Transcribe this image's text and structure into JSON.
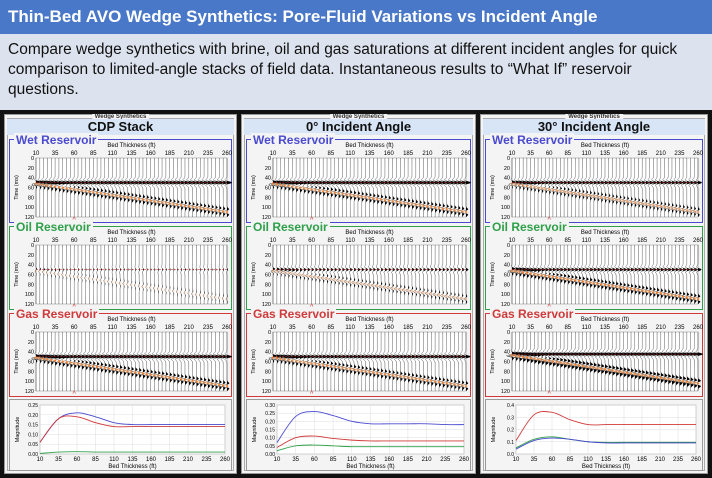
{
  "title": "Thin-Bed AVO Wedge Synthetics: Pore-Fluid Variations vs Incident Angle",
  "description": "Compare wedge synthetics with brine, oil and gas saturations at different incident angles for quick comparison to limited-angle stacks of field data. Instantaneous results to “What If” reservoir questions.",
  "group_label": "Wedge Synthetics",
  "x_axis_label": "Bed Thickness (ft)",
  "time_axis_label": "Time (ms)",
  "magnitude_axis_label": "Magnitude",
  "x_ticks": [
    "10",
    "35",
    "60",
    "85",
    "110",
    "135",
    "160",
    "185",
    "210",
    "235",
    "260"
  ],
  "time_ticks": [
    "0",
    "20",
    "40",
    "60",
    "80",
    "100",
    "120"
  ],
  "marker": "^",
  "colors": {
    "wet": "#4a4ad0",
    "oil": "#2fa04a",
    "gas": "#d03a3a",
    "title_bg": "#4a78c8",
    "horizon": "#f08030"
  },
  "columns": [
    {
      "heading": "CDP Stack",
      "reservoirs": [
        {
          "label": "Wet Reservoir",
          "key": "wet",
          "top_amp": 1.0,
          "base_amp": -0.9
        },
        {
          "label": "Oil Reservoir",
          "key": "oil",
          "top_amp": 0.15,
          "base_amp": -0.2
        },
        {
          "label": "Gas Reservoir",
          "key": "gas",
          "top_amp": 1.0,
          "base_amp": -1.0
        }
      ],
      "magnitude": {
        "yticks": [
          "0.00",
          "0.05",
          "0.10",
          "0.15",
          "0.20",
          "0.25"
        ],
        "ymax": 0.25
      }
    },
    {
      "heading": "0° Incident Angle",
      "reservoirs": [
        {
          "label": "Wet Reservoir",
          "key": "wet",
          "top_amp": 1.0,
          "base_amp": -0.9
        },
        {
          "label": "Oil Reservoir",
          "key": "oil",
          "top_amp": 0.45,
          "base_amp": -0.45
        },
        {
          "label": "Gas Reservoir",
          "key": "gas",
          "top_amp": 0.9,
          "base_amp": -0.9
        }
      ],
      "magnitude": {
        "yticks": [
          "0.00",
          "0.05",
          "0.10",
          "0.15",
          "0.20",
          "0.25",
          "0.30"
        ],
        "ymax": 0.3
      }
    },
    {
      "heading": "30° Incident Angle",
      "reservoirs": [
        {
          "label": "Wet Reservoir",
          "key": "wet",
          "top_amp": 0.8,
          "base_amp": -0.7
        },
        {
          "label": "Oil Reservoir",
          "key": "oil",
          "top_amp": 0.7,
          "base_amp": -1.0
        },
        {
          "label": "Gas Reservoir",
          "key": "gas",
          "top_amp": 1.0,
          "base_amp": -1.3
        }
      ],
      "magnitude": {
        "yticks": [
          "0.0",
          "0.1",
          "0.2",
          "0.3",
          "0.4"
        ],
        "ymax": 0.4
      }
    }
  ],
  "chart_data": [
    {
      "type": "line",
      "title": "CDP Stack",
      "xlabel": "Bed Thickness (ft)",
      "ylabel": "Magnitude",
      "ylim": [
        0,
        0.25
      ],
      "x": [
        10,
        35,
        60,
        85,
        110,
        135,
        160,
        185,
        210,
        235,
        260
      ],
      "series": [
        {
          "name": "wet",
          "values": [
            0.06,
            0.18,
            0.21,
            0.19,
            0.16,
            0.15,
            0.15,
            0.15,
            0.15,
            0.15,
            0.15
          ]
        },
        {
          "name": "gas",
          "values": [
            0.06,
            0.18,
            0.19,
            0.16,
            0.14,
            0.14,
            0.14,
            0.14,
            0.14,
            0.14,
            0.14
          ]
        },
        {
          "name": "oil",
          "values": [
            0.003,
            0.01,
            0.012,
            0.01,
            0.01,
            0.01,
            0.01,
            0.01,
            0.01,
            0.01,
            0.01
          ]
        }
      ]
    },
    {
      "type": "line",
      "title": "0° Incident Angle",
      "xlabel": "Bed Thickness (ft)",
      "ylabel": "Magnitude",
      "ylim": [
        0,
        0.3
      ],
      "x": [
        10,
        35,
        60,
        85,
        110,
        135,
        160,
        185,
        210,
        235,
        260
      ],
      "series": [
        {
          "name": "wet",
          "values": [
            0.07,
            0.23,
            0.26,
            0.235,
            0.2,
            0.185,
            0.185,
            0.185,
            0.185,
            0.18,
            0.18
          ]
        },
        {
          "name": "gas",
          "values": [
            0.04,
            0.1,
            0.11,
            0.095,
            0.085,
            0.08,
            0.08,
            0.08,
            0.08,
            0.08,
            0.08
          ]
        },
        {
          "name": "oil",
          "values": [
            0.02,
            0.05,
            0.055,
            0.05,
            0.045,
            0.045,
            0.045,
            0.045,
            0.045,
            0.045,
            0.045
          ]
        }
      ]
    },
    {
      "type": "line",
      "title": "30° Incident Angle",
      "xlabel": "Bed Thickness (ft)",
      "ylabel": "Magnitude",
      "ylim": [
        0,
        0.4
      ],
      "x": [
        10,
        35,
        60,
        85,
        110,
        135,
        160,
        185,
        210,
        235,
        260
      ],
      "series": [
        {
          "name": "gas",
          "values": [
            0.11,
            0.32,
            0.34,
            0.28,
            0.24,
            0.24,
            0.24,
            0.24,
            0.24,
            0.24,
            0.24
          ]
        },
        {
          "name": "oil",
          "values": [
            0.05,
            0.12,
            0.14,
            0.12,
            0.1,
            0.095,
            0.095,
            0.095,
            0.095,
            0.095,
            0.095
          ]
        },
        {
          "name": "wet",
          "values": [
            0.04,
            0.11,
            0.13,
            0.12,
            0.1,
            0.09,
            0.09,
            0.09,
            0.09,
            0.09,
            0.09
          ]
        }
      ]
    }
  ]
}
